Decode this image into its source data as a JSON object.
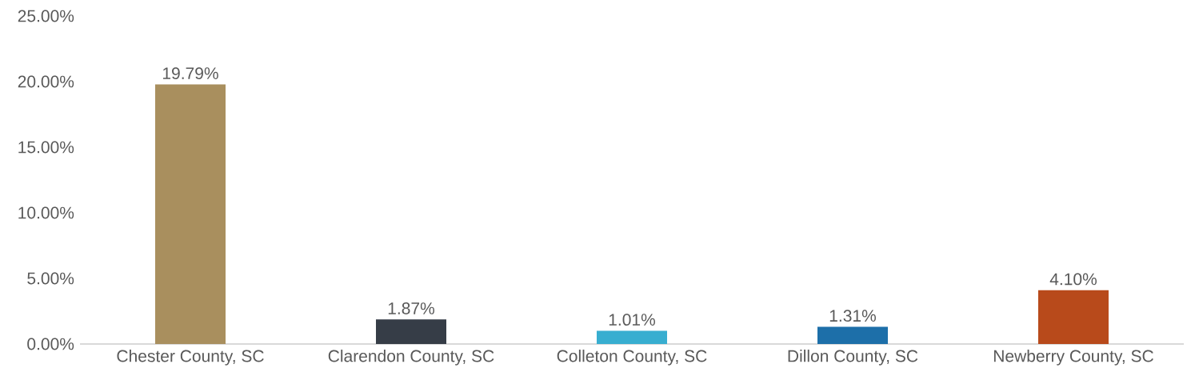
{
  "chart_data": {
    "type": "bar",
    "categories": [
      "Chester County, SC",
      "Clarendon County, SC",
      "Colleton County, SC",
      "Dillon County, SC",
      "Newberry County, SC"
    ],
    "values": [
      19.79,
      1.87,
      1.01,
      1.31,
      4.1
    ],
    "colors": [
      "#a98f5e",
      "#363d47",
      "#38aed0",
      "#1d6fa9",
      "#b84a1b"
    ],
    "value_labels": [
      "19.79%",
      "1.87%",
      "1.01%",
      "1.31%",
      "4.10%"
    ],
    "ylim": [
      0,
      25
    ],
    "yticks": [
      {
        "value": 0,
        "label": "0.00%"
      },
      {
        "value": 5,
        "label": "5.00%"
      },
      {
        "value": 10,
        "label": "10.00%"
      },
      {
        "value": 15,
        "label": "15.00%"
      },
      {
        "value": 20,
        "label": "20.00%"
      },
      {
        "value": 25,
        "label": "25.00%"
      }
    ]
  }
}
